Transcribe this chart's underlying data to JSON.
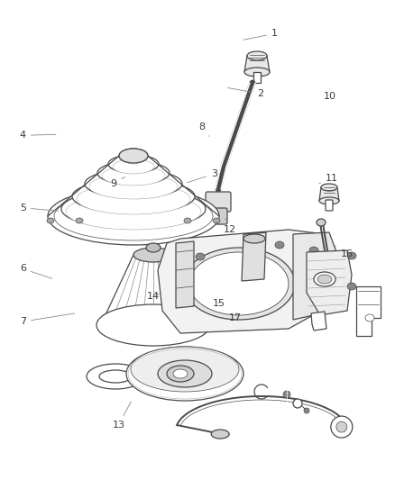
{
  "background_color": "#ffffff",
  "line_color": "#4a4a4a",
  "label_color": "#3a3a3a",
  "figsize": [
    4.38,
    5.33
  ],
  "dpi": 100,
  "leaders": {
    "1": [
      0.695,
      0.93,
      0.61,
      0.916
    ],
    "2": [
      0.658,
      0.805,
      0.57,
      0.818
    ],
    "3": [
      0.542,
      0.638,
      0.468,
      0.618
    ],
    "4": [
      0.058,
      0.718,
      0.148,
      0.72
    ],
    "5": [
      0.058,
      0.567,
      0.155,
      0.56
    ],
    "6": [
      0.058,
      0.44,
      0.138,
      0.418
    ],
    "7": [
      0.058,
      0.33,
      0.195,
      0.348
    ],
    "8": [
      0.512,
      0.736,
      0.53,
      0.716
    ],
    "9": [
      0.288,
      0.618,
      0.322,
      0.634
    ],
    "10": [
      0.835,
      0.8,
      0.835,
      0.815
    ],
    "11": [
      0.84,
      0.628,
      0.808,
      0.618
    ],
    "12": [
      0.582,
      0.522,
      0.57,
      0.545
    ],
    "13": [
      0.3,
      0.115,
      0.335,
      0.168
    ],
    "14": [
      0.388,
      0.382,
      0.408,
      0.39
    ],
    "15": [
      0.555,
      0.368,
      0.555,
      0.372
    ],
    "16": [
      0.878,
      0.47,
      0.848,
      0.488
    ],
    "17": [
      0.595,
      0.338,
      0.598,
      0.348
    ]
  }
}
